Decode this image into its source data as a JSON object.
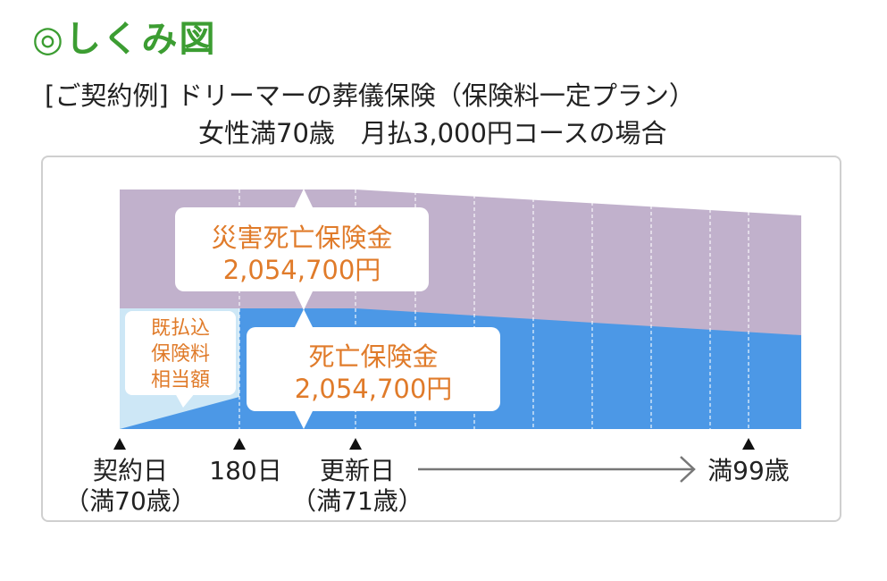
{
  "heading": "◎しくみ図",
  "subtitle_line1": "[ご契約例] ドリーマーの葬儀保険（保険料一定プラン）",
  "subtitle_line2": "女性満70歳　月払3,000円コースの場合",
  "callouts": {
    "disaster_death": {
      "title": "災害死亡保険金",
      "amount": "2,054,700円"
    },
    "death": {
      "title": "死亡保険金",
      "amount": "2,054,700円"
    },
    "paid_premium": {
      "line1": "既払込",
      "line2": "保険料",
      "line3": "相当額"
    }
  },
  "timeline": {
    "contract_date": {
      "line1": "契約日",
      "line2": "（満70歳）"
    },
    "day180": {
      "line1": "180日"
    },
    "renewal_date": {
      "line1": "更新日",
      "line2": "（満71歳）"
    },
    "end": {
      "line1": "満99歳"
    }
  },
  "colors": {
    "disaster_band": "#c1b1cc",
    "death_band": "#4c98e6",
    "premium_band": "#cde7f6",
    "amount_text": "#e07b2a",
    "heading": "#3c9d32",
    "arrow": "#777777"
  }
}
